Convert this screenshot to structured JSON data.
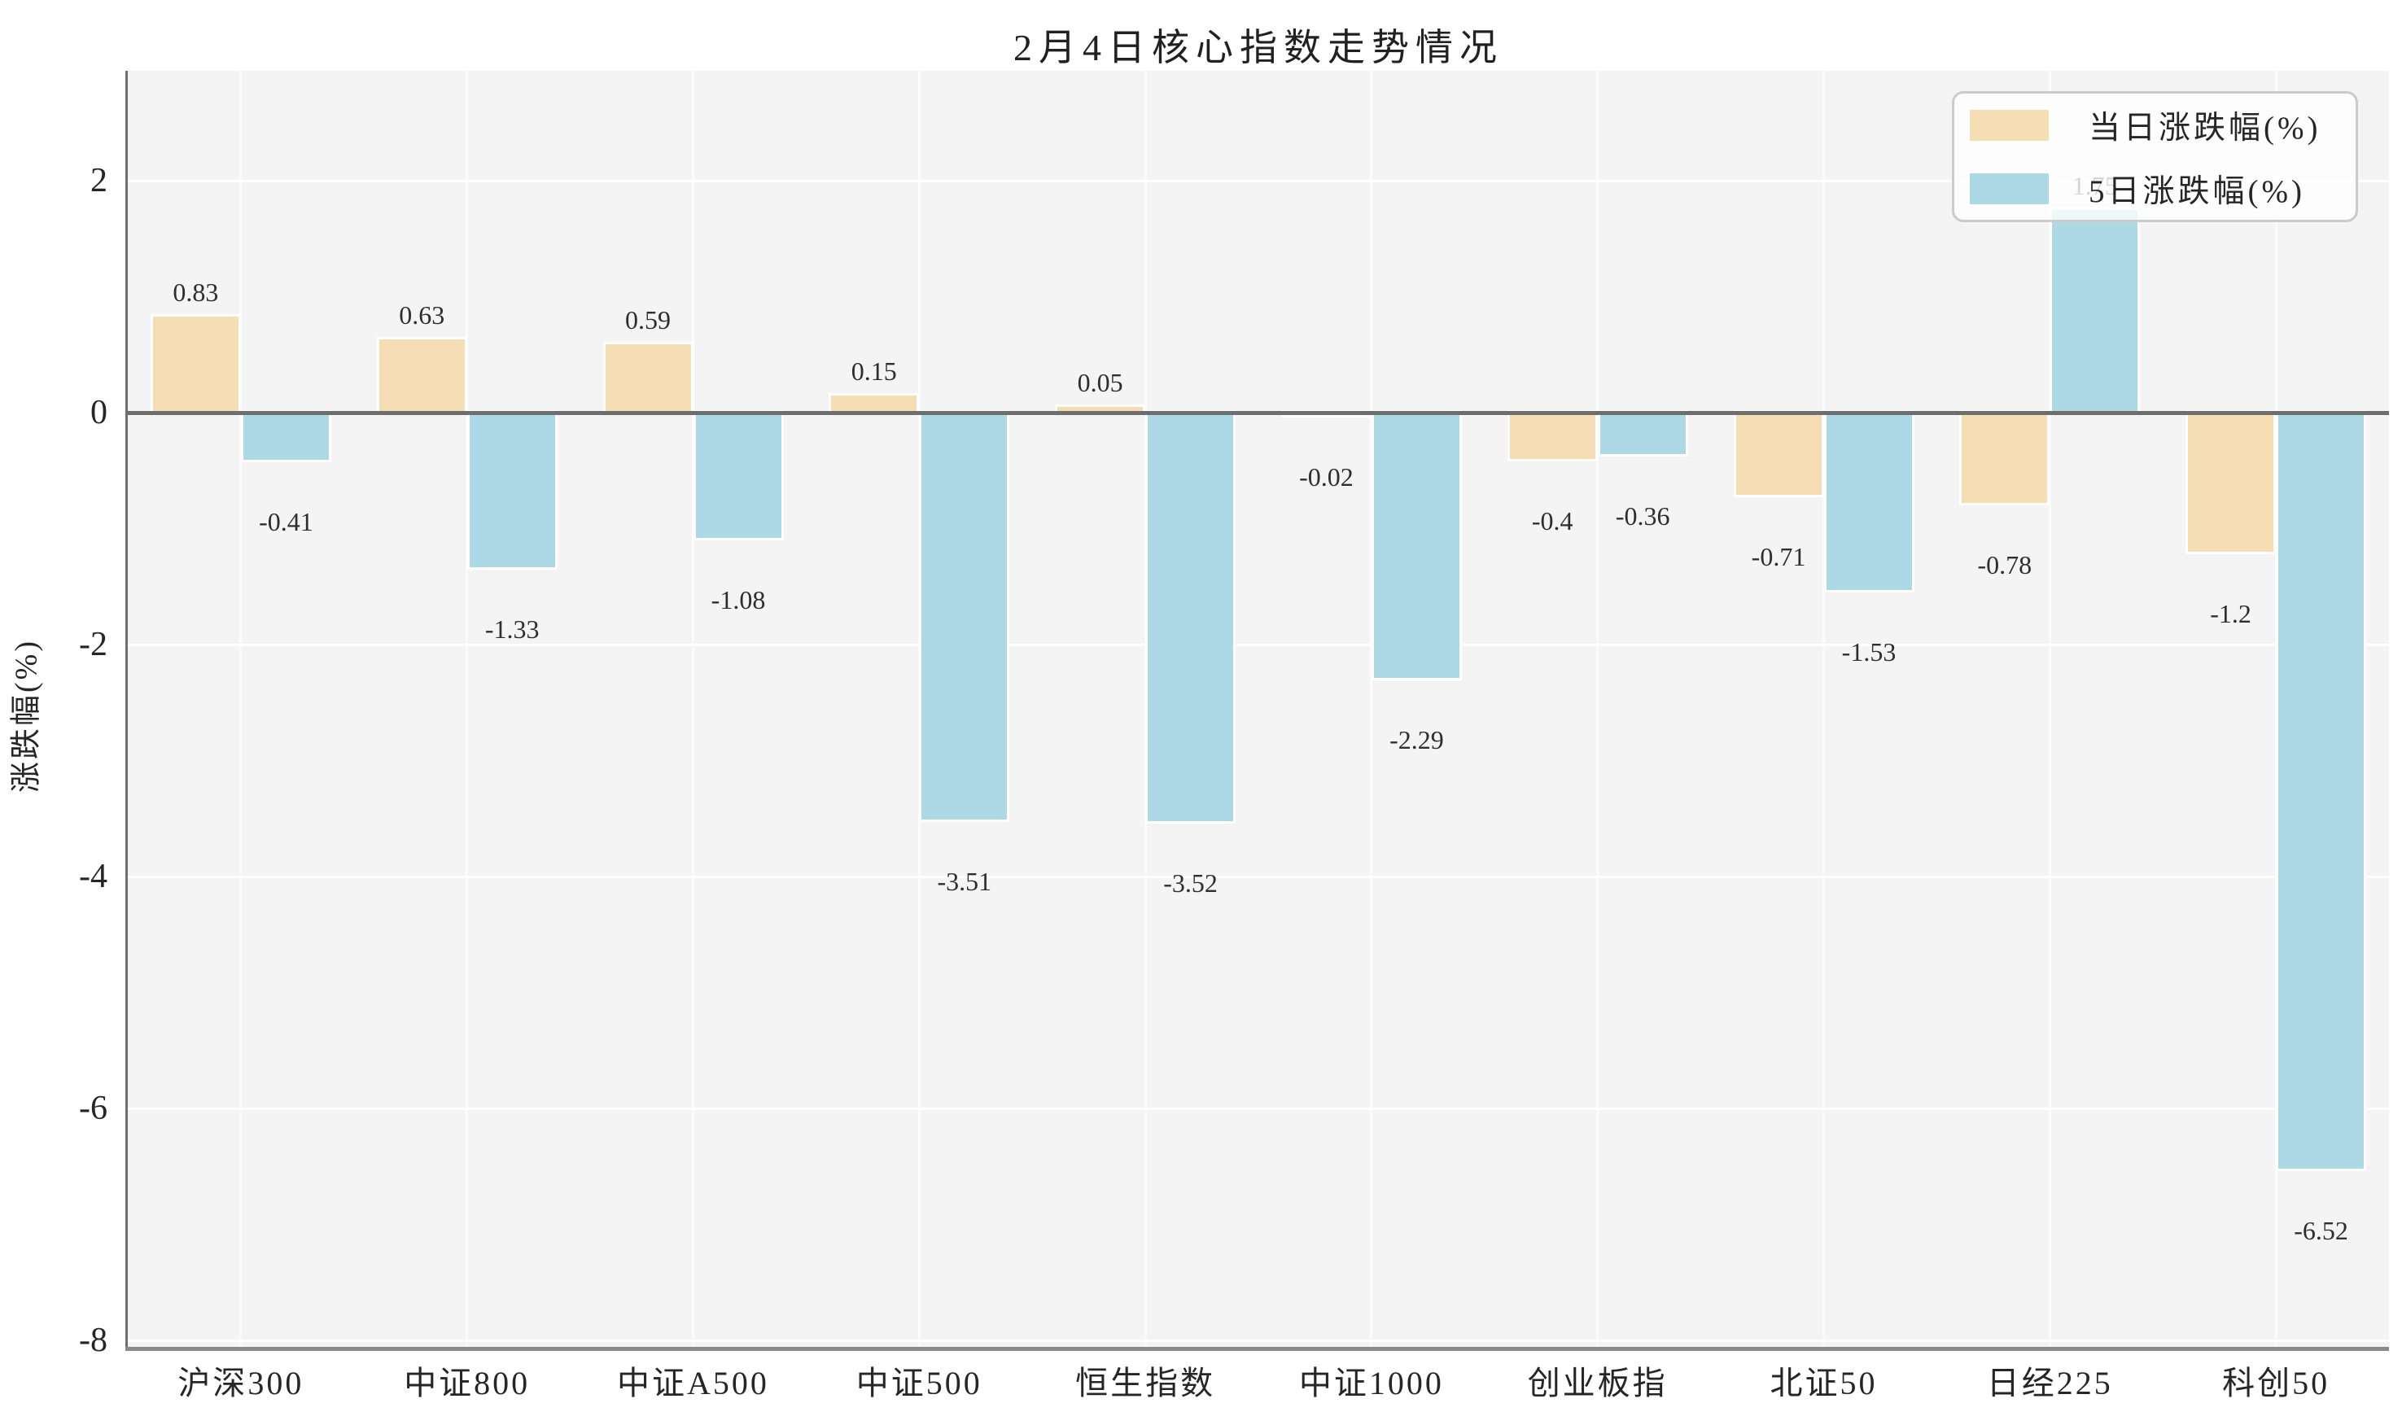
{
  "chart_data": {
    "type": "bar",
    "title": "2月4日核心指数走势情况",
    "xlabel": "",
    "ylabel": "涨跌幅(%)",
    "categories": [
      "沪深300",
      "中证800",
      "中证A500",
      "中证500",
      "恒生指数",
      "中证1000",
      "创业板指",
      "北证50",
      "日经225",
      "科创50"
    ],
    "series": [
      {
        "name": "当日涨跌幅(%)",
        "color": "#f5deb3",
        "values": [
          0.83,
          0.63,
          0.59,
          0.15,
          0.05,
          -0.02,
          -0.4,
          -0.71,
          -0.78,
          -1.2
        ]
      },
      {
        "name": "5日涨跌幅(%)",
        "color": "#add8e6",
        "values": [
          -0.41,
          -1.33,
          -1.08,
          -3.51,
          -3.52,
          -2.29,
          -0.36,
          -1.53,
          1.75,
          -6.52
        ]
      }
    ],
    "yticks": [
      2,
      0,
      -2,
      -4,
      -6,
      -8
    ],
    "ylim": [
      -8.06,
      2.95
    ],
    "grid": true,
    "grid_color_horizontal": "#ffffff",
    "grid_color_vertical": "#fbfbfb",
    "plot_background": "#f4f4f4",
    "axis_line_color": "#6e6e6e",
    "bar_labels": true,
    "legend_position": "upper right"
  }
}
